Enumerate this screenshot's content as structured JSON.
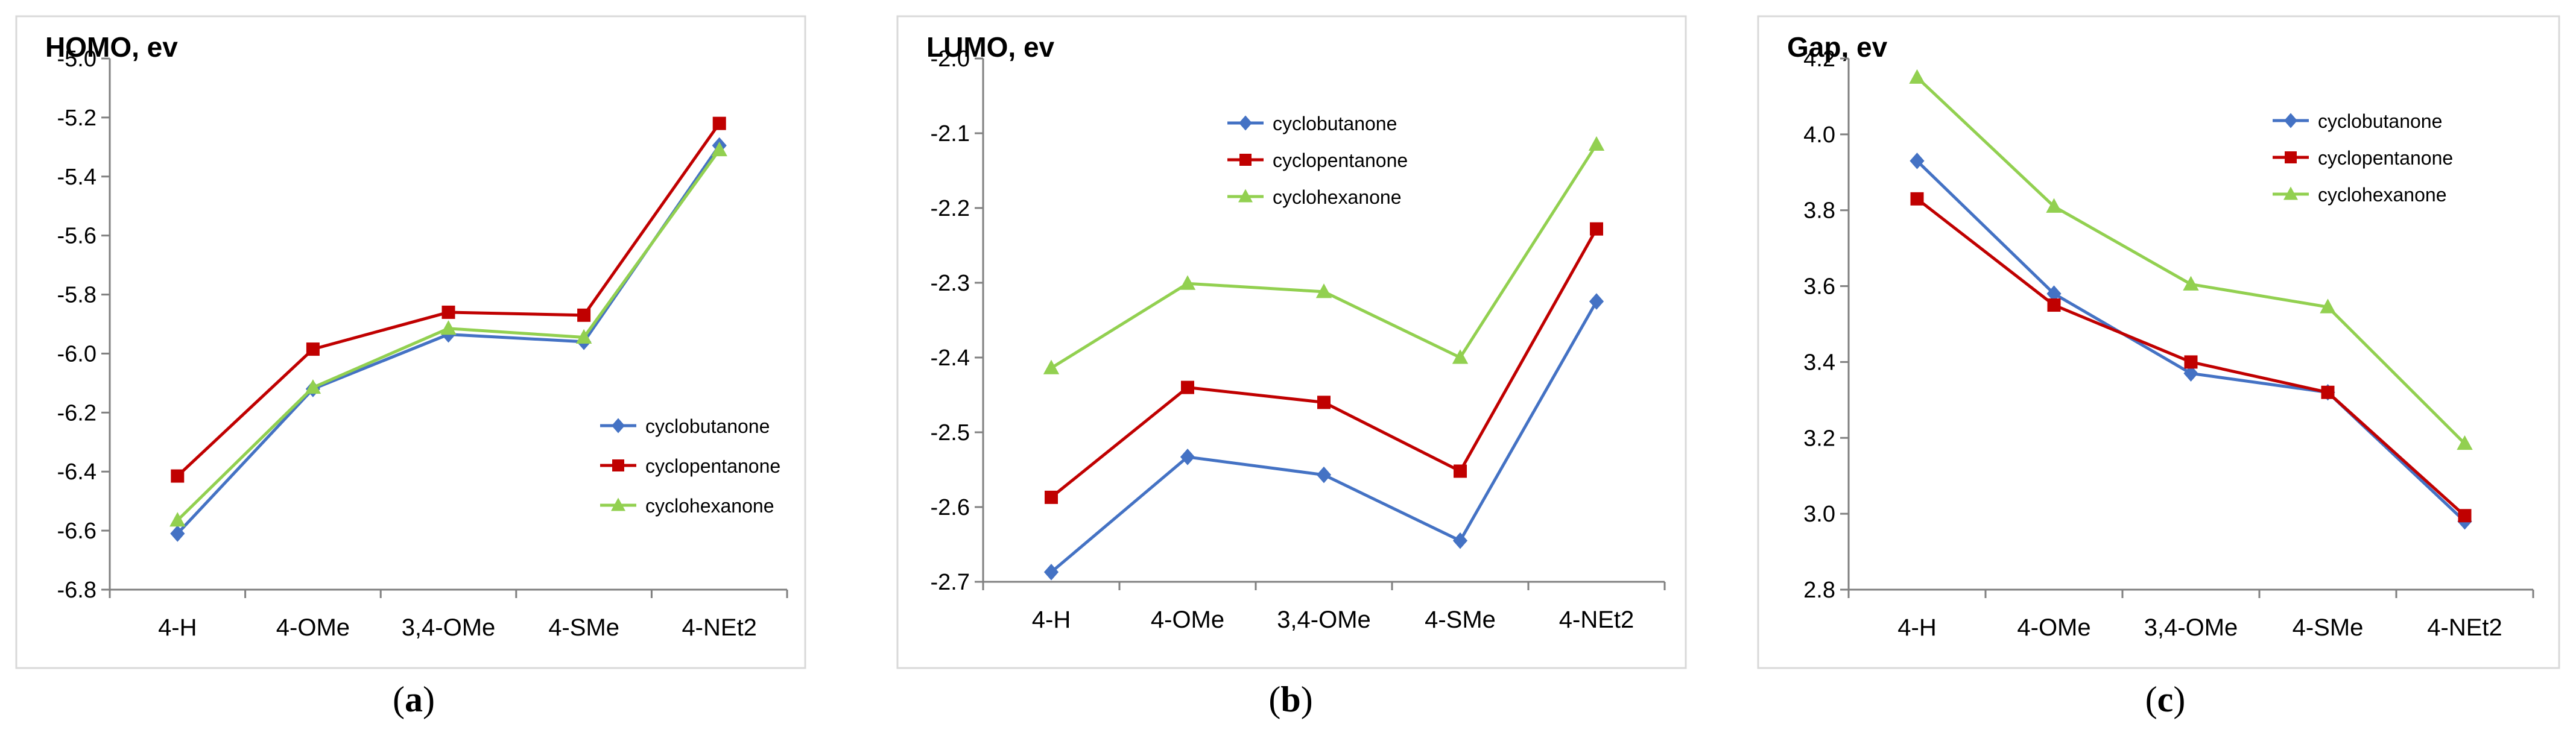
{
  "chart_data": [
    {
      "type": "line",
      "title": "HOMO, ev",
      "caption": "(a)",
      "categories": [
        "4-H",
        "4-OMe",
        "3,4-OMe",
        "4-SMe",
        "4-NEt2"
      ],
      "ylim": [
        -6.8,
        -5.0
      ],
      "yticks": [
        "-6.8",
        "-6.6",
        "-6.4",
        "-6.2",
        "-6.0",
        "-5.8",
        "-5.6",
        "-5.4",
        "-5.2",
        "-5.0"
      ],
      "legend_position": "lower-right",
      "series": [
        {
          "name": "cyclobutanone",
          "color": "#4472C4",
          "marker": "diamond",
          "values": [
            -6.61,
            -6.12,
            -5.935,
            -5.96,
            -5.295
          ]
        },
        {
          "name": "cyclopentanone",
          "color": "#C00000",
          "marker": "square",
          "values": [
            -6.415,
            -5.985,
            -5.86,
            -5.87,
            -5.22
          ]
        },
        {
          "name": "cyclohexanone",
          "color": "#92D050",
          "marker": "triangle",
          "values": [
            -6.565,
            -6.115,
            -5.915,
            -5.945,
            -5.31
          ]
        }
      ]
    },
    {
      "type": "line",
      "title": "LUMO, ev",
      "caption": "(b)",
      "categories": [
        "4-H",
        "4-OMe",
        "3,4-OMe",
        "4-SMe",
        "4-NEt2"
      ],
      "ylim": [
        -2.7,
        -2.0
      ],
      "yticks": [
        "-2.7",
        "-2.6",
        "-2.5",
        "-2.4",
        "-2.3",
        "-2.2",
        "-2.1",
        "-2.0"
      ],
      "legend_position": "top-right",
      "series": [
        {
          "name": "cyclobutanone",
          "color": "#4472C4",
          "marker": "diamond",
          "values": [
            -2.687,
            -2.533,
            -2.557,
            -2.645,
            -2.325
          ]
        },
        {
          "name": "cyclopentanone",
          "color": "#C00000",
          "marker": "square",
          "values": [
            -2.587,
            -2.44,
            -2.46,
            -2.552,
            -2.228
          ]
        },
        {
          "name": "cyclohexanone",
          "color": "#92D050",
          "marker": "triangle",
          "values": [
            -2.414,
            -2.301,
            -2.312,
            -2.4,
            -2.115
          ]
        }
      ]
    },
    {
      "type": "line",
      "title": "Gap, ev",
      "caption": "(c)",
      "categories": [
        "4-H",
        "4-OMe",
        "3,4-OMe",
        "4-SMe",
        "4-NEt2"
      ],
      "ylim": [
        2.8,
        4.2
      ],
      "yticks": [
        "2.8",
        "3.0",
        "3.2",
        "3.4",
        "3.6",
        "3.8",
        "4.0",
        "4.2"
      ],
      "legend_position": "top-right",
      "series": [
        {
          "name": "cyclobutanone",
          "color": "#4472C4",
          "marker": "diamond",
          "values": [
            3.93,
            3.58,
            3.37,
            3.32,
            2.98
          ]
        },
        {
          "name": "cyclopentanone",
          "color": "#C00000",
          "marker": "square",
          "values": [
            3.83,
            3.55,
            3.4,
            3.32,
            2.995
          ]
        },
        {
          "name": "cyclohexanone",
          "color": "#92D050",
          "marker": "triangle",
          "values": [
            4.15,
            3.81,
            3.605,
            3.545,
            3.185
          ]
        }
      ]
    }
  ]
}
